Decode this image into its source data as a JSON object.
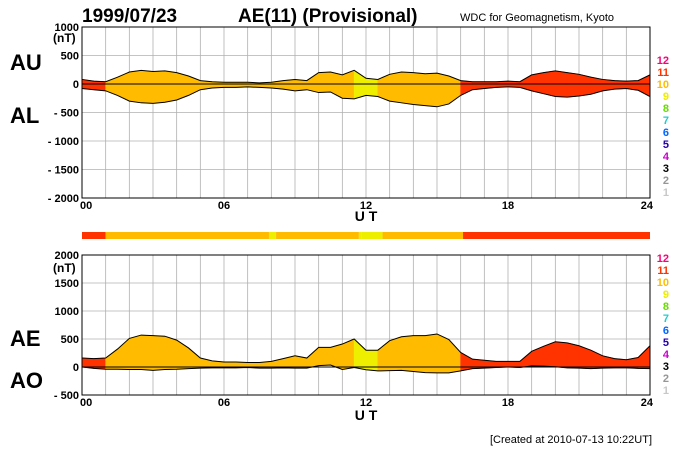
{
  "header": {
    "date": "1999/07/23",
    "title": "AE(11) (Provisional)",
    "source": "WDC for Geomagnetism, Kyoto",
    "created": "[Created at 2010-07-13 10:22UT]"
  },
  "level_colors": {
    "1": "#c8c8c8",
    "2": "#969696",
    "3": "#000000",
    "4": "#cc00cc",
    "5": "#2200aa",
    "6": "#0066ff",
    "7": "#22cccc",
    "8": "#66dd00",
    "9": "#eeee00",
    "10": "#ffbb00",
    "11": "#ff3300",
    "12": "#ff0077"
  },
  "level_scale": [
    "12",
    "11",
    "10",
    "9",
    "8",
    "7",
    "6",
    "5",
    "4",
    "3",
    "2",
    "1"
  ],
  "activity_bar": [
    {
      "from": 0,
      "to": 1,
      "level": 11
    },
    {
      "from": 1,
      "to": 7.9,
      "level": 10
    },
    {
      "from": 7.9,
      "to": 8.2,
      "level": 9
    },
    {
      "from": 8.2,
      "to": 11.7,
      "level": 10
    },
    {
      "from": 11.7,
      "to": 11.8,
      "level": 9
    },
    {
      "from": 11.8,
      "to": 12.7,
      "level": 9
    },
    {
      "from": 12.7,
      "to": 16.1,
      "level": 10
    },
    {
      "from": 16.1,
      "to": 24,
      "level": 11
    }
  ],
  "chart_data": [
    {
      "type": "area",
      "labels": {
        "upper": "AU",
        "lower": "AL"
      },
      "unit": "(nT)",
      "xlabel": "U T",
      "xlim": [
        0,
        24
      ],
      "ylim": [
        -2000,
        1000
      ],
      "yticks": [
        "1000",
        "500",
        "0",
        "- 500",
        "- 1000",
        "- 1500",
        "- 2000"
      ],
      "xticks": [
        "00",
        "06",
        "12",
        "18",
        "24"
      ],
      "x": [
        0,
        0.5,
        1,
        1.5,
        2,
        2.5,
        3,
        3.5,
        4,
        4.5,
        5,
        5.5,
        6,
        6.5,
        7,
        7.5,
        8,
        8.5,
        9,
        9.5,
        10,
        10.5,
        11,
        11.5,
        12,
        12.5,
        13,
        13.5,
        14,
        14.5,
        15,
        15.5,
        16,
        16.5,
        17,
        17.5,
        18,
        18.5,
        19,
        19.5,
        20,
        20.5,
        21,
        21.5,
        22,
        22.5,
        23,
        23.5,
        24
      ],
      "series": [
        {
          "name": "AU",
          "values": [
            80,
            50,
            40,
            120,
            210,
            240,
            220,
            230,
            200,
            140,
            60,
            40,
            30,
            30,
            30,
            20,
            30,
            60,
            80,
            60,
            200,
            210,
            160,
            240,
            100,
            80,
            170,
            210,
            200,
            180,
            190,
            140,
            60,
            40,
            40,
            40,
            50,
            40,
            160,
            200,
            230,
            200,
            170,
            120,
            80,
            60,
            50,
            60,
            160
          ]
        },
        {
          "name": "AL",
          "values": [
            -80,
            -100,
            -120,
            -200,
            -300,
            -330,
            -340,
            -320,
            -280,
            -200,
            -100,
            -70,
            -60,
            -60,
            -50,
            -60,
            -70,
            -90,
            -120,
            -100,
            -150,
            -140,
            -250,
            -260,
            -200,
            -220,
            -300,
            -330,
            -360,
            -380,
            -400,
            -350,
            -200,
            -100,
            -80,
            -60,
            -50,
            -60,
            -120,
            -170,
            -220,
            -230,
            -210,
            -180,
            -120,
            -90,
            -80,
            -110,
            -220
          ]
        }
      ]
    },
    {
      "type": "area",
      "labels": {
        "upper": "AE",
        "lower": "AO"
      },
      "unit": "(nT)",
      "xlabel": "U T",
      "xlim": [
        0,
        24
      ],
      "ylim": [
        -500,
        2000
      ],
      "yticks": [
        "2000",
        "1500",
        "1000",
        "500",
        "0",
        "- 500"
      ],
      "xticks": [
        "00",
        "06",
        "12",
        "18",
        "24"
      ],
      "x": [
        0,
        0.5,
        1,
        1.5,
        2,
        2.5,
        3,
        3.5,
        4,
        4.5,
        5,
        5.5,
        6,
        6.5,
        7,
        7.5,
        8,
        8.5,
        9,
        9.5,
        10,
        10.5,
        11,
        11.5,
        12,
        12.5,
        13,
        13.5,
        14,
        14.5,
        15,
        15.5,
        16,
        16.5,
        17,
        17.5,
        18,
        18.5,
        19,
        19.5,
        20,
        20.5,
        21,
        21.5,
        22,
        22.5,
        23,
        23.5,
        24
      ],
      "series": [
        {
          "name": "AE",
          "values": [
            160,
            150,
            160,
            320,
            510,
            570,
            560,
            550,
            480,
            340,
            160,
            110,
            90,
            90,
            80,
            80,
            100,
            150,
            200,
            160,
            350,
            350,
            410,
            500,
            300,
            300,
            470,
            540,
            560,
            560,
            590,
            490,
            260,
            140,
            120,
            100,
            100,
            100,
            280,
            370,
            450,
            430,
            380,
            300,
            200,
            150,
            130,
            170,
            380
          ]
        },
        {
          "name": "AO",
          "values": [
            0,
            -25,
            -40,
            -40,
            -45,
            -45,
            -60,
            -45,
            -40,
            -30,
            -20,
            -15,
            -15,
            -15,
            -10,
            -20,
            -20,
            -15,
            -20,
            -20,
            25,
            35,
            -45,
            -10,
            -50,
            -70,
            -65,
            -60,
            -80,
            -100,
            -105,
            -105,
            -70,
            -30,
            -20,
            -10,
            0,
            -10,
            20,
            15,
            5,
            -15,
            -20,
            -30,
            -20,
            -15,
            -15,
            -25,
            -30
          ]
        }
      ]
    }
  ]
}
